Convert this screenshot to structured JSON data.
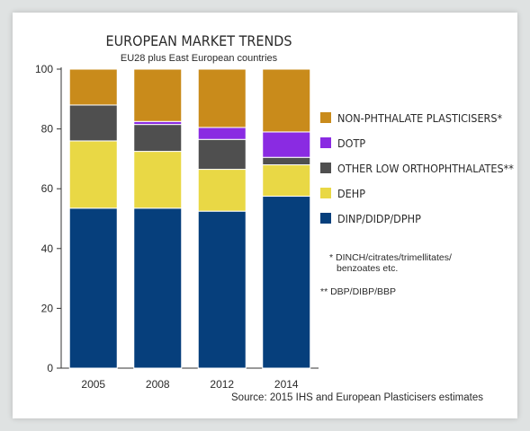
{
  "chart_data": {
    "type": "bar",
    "stacked": true,
    "title": "EUROPEAN MARKET TRENDS",
    "subtitle": "EU28 plus East European countries",
    "categories": [
      "2005",
      "2008",
      "2012",
      "2014"
    ],
    "ylim": [
      0,
      100
    ],
    "yticks": [
      0,
      20,
      40,
      60,
      80,
      100
    ],
    "grid": false,
    "legend_position": "right",
    "series": [
      {
        "name": "DINP/DIDP/DPHP",
        "color": "#063f7c",
        "values": [
          53.5,
          53.5,
          52.5,
          57.5
        ]
      },
      {
        "name": "DEHP",
        "color": "#e9d845",
        "values": [
          22.5,
          19.0,
          14.0,
          10.5
        ]
      },
      {
        "name": "OTHER LOW ORTHOPHTHALATES**",
        "color": "#4f4f4f",
        "values": [
          12.0,
          9.0,
          10.0,
          2.5
        ]
      },
      {
        "name": "DOTP",
        "color": "#8a2be2",
        "values": [
          0.0,
          1.0,
          4.0,
          8.5
        ]
      },
      {
        "name": "NON-PHTHALATE PLASTICISERS*",
        "color": "#c98b1b",
        "values": [
          12.0,
          17.5,
          19.5,
          21.0
        ]
      }
    ],
    "legend_order": [
      "NON-PHTHALATE PLASTICISERS*",
      "DOTP",
      "OTHER LOW ORTHOPHTHALATES**",
      "DEHP",
      "DINP/DIDP/DPHP"
    ],
    "notes": [
      "* DINCH/citrates/trimellitates/",
      "benzoates etc.",
      "** DBP/DIBP/BBP"
    ],
    "source": "Source: 2015 IHS and European Plasticisers estimates"
  }
}
